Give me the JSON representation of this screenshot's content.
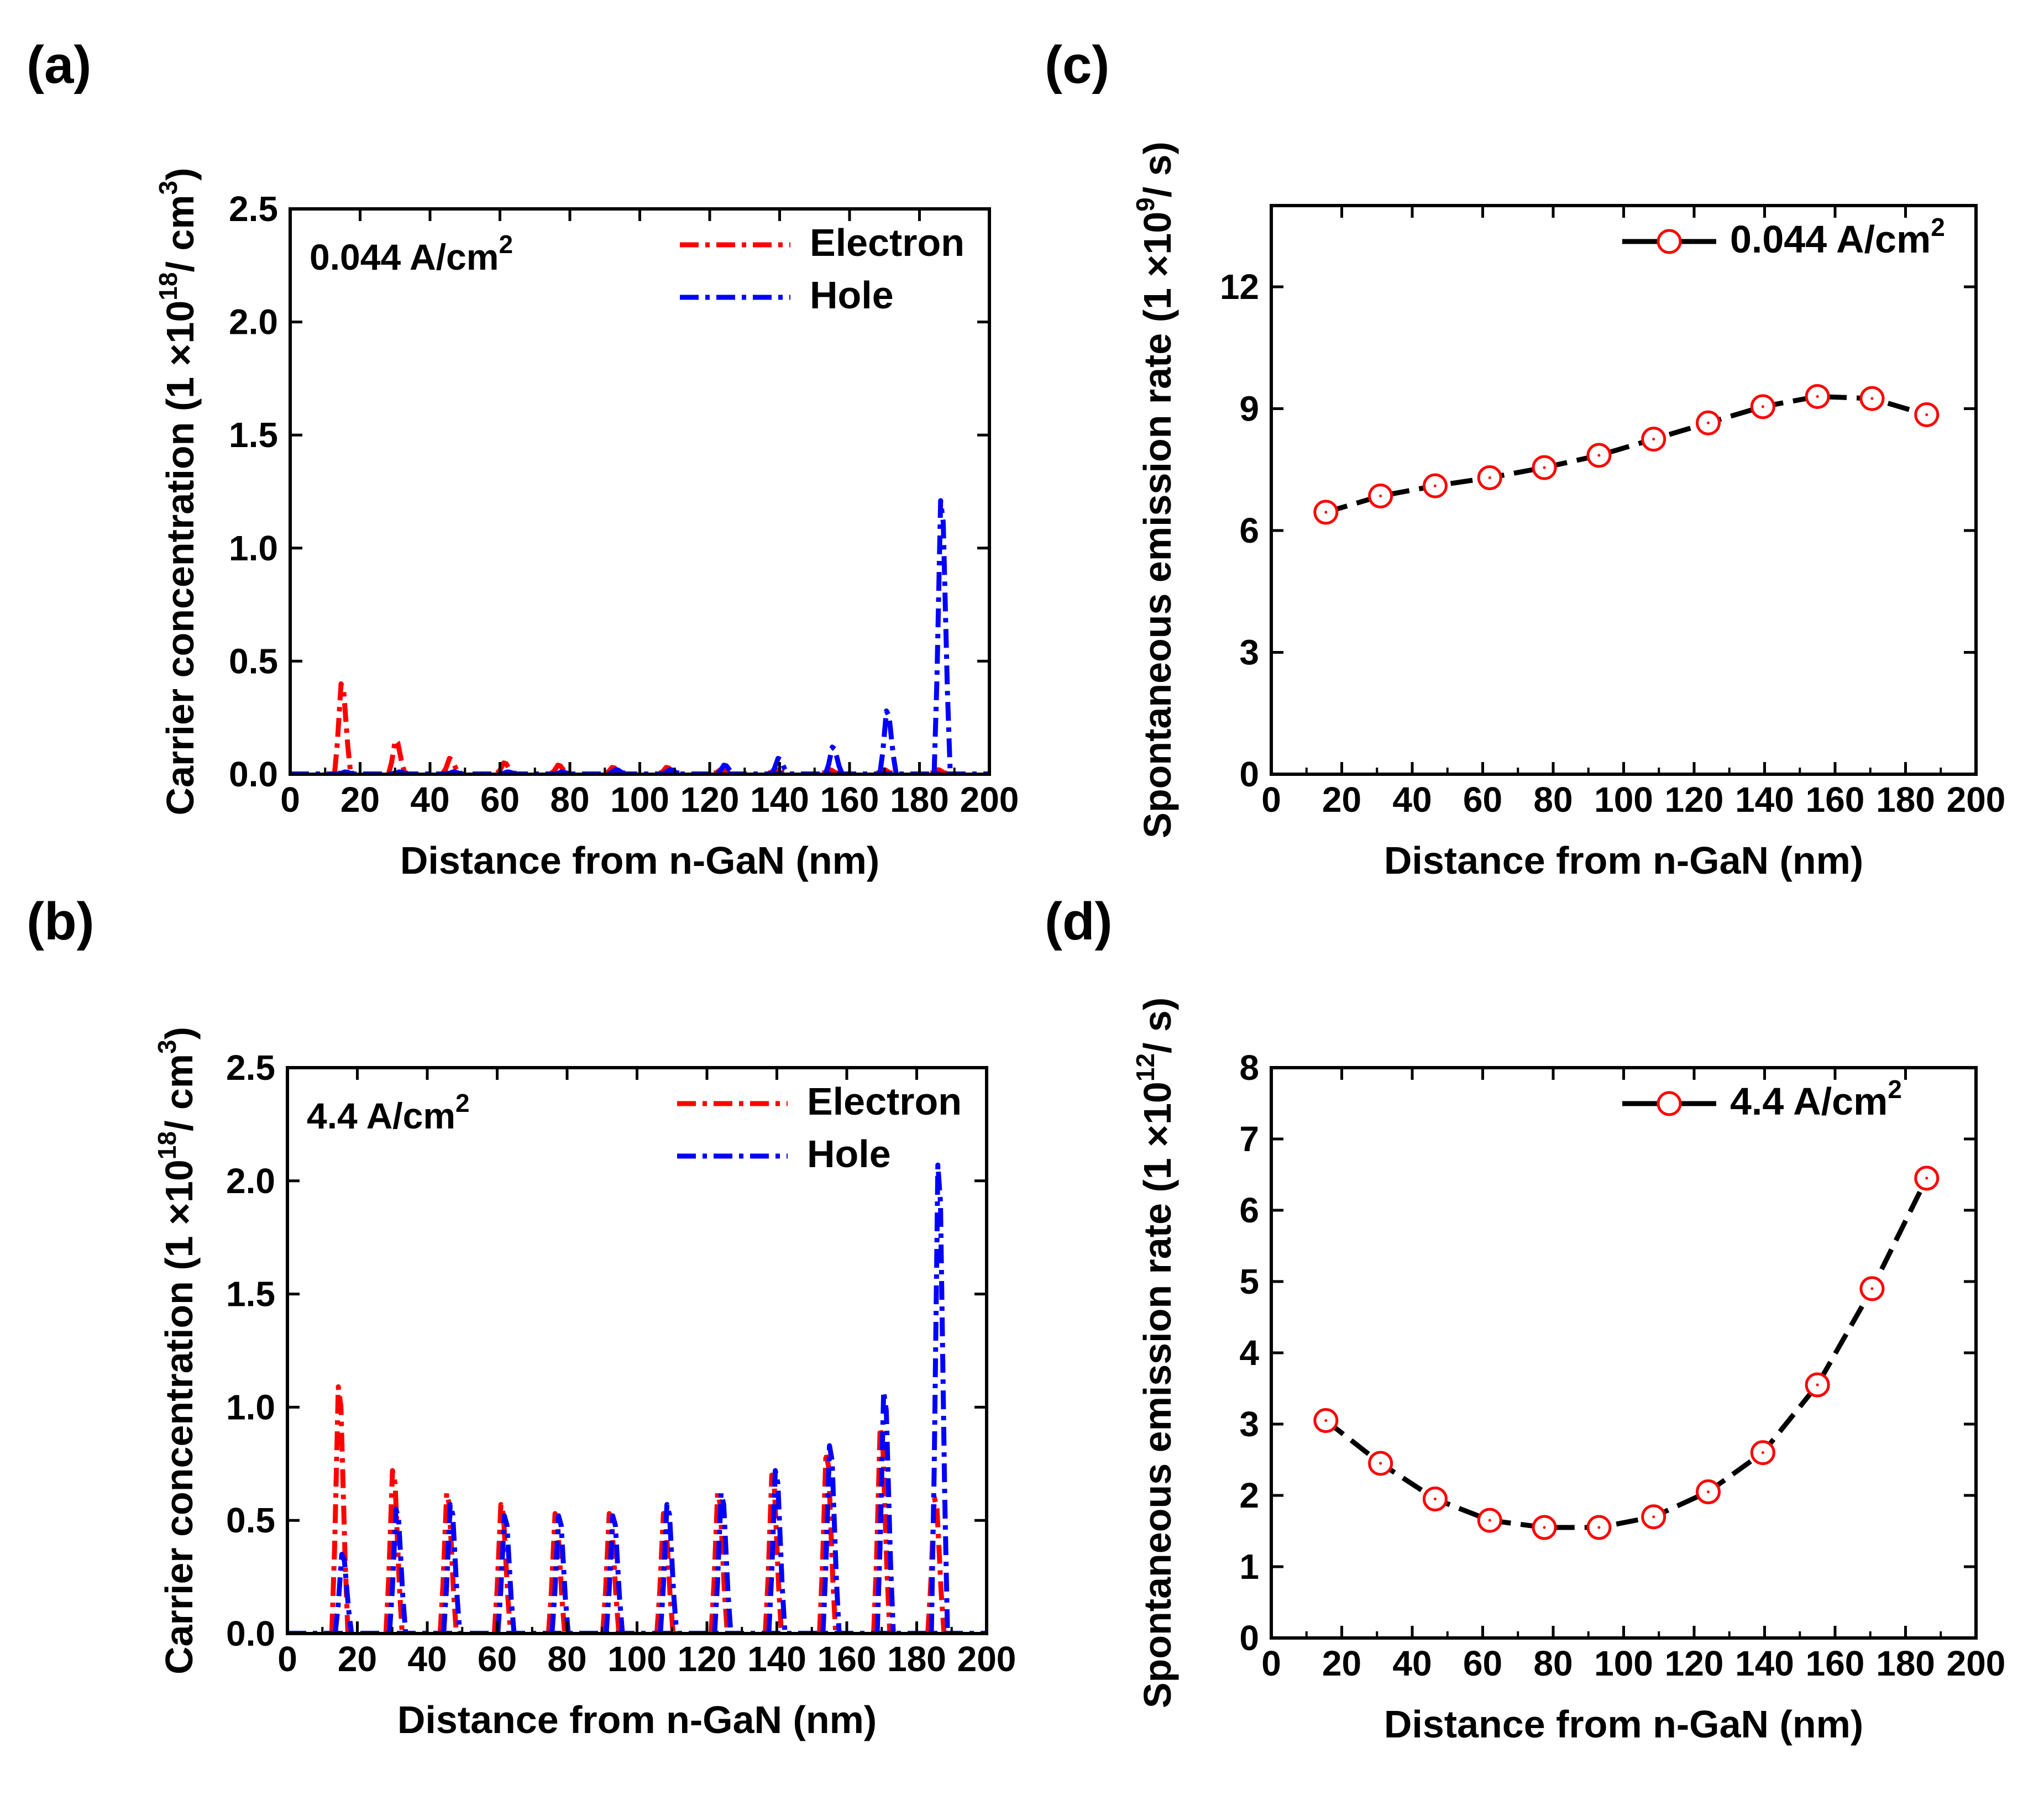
{
  "figure_description": "Four-panel simulation results of multiple quantum well LED",
  "chart_data": [
    {
      "id": "a",
      "panel_label": "(a)",
      "type": "line",
      "xlabel": "Distance from n-GaN (nm)",
      "ylabel_main": "Carrier concentration (1 ×10",
      "ylabel_sup1": "18",
      "ylabel_mid": "/ cm",
      "ylabel_sup2": "3",
      "ylabel_end": ")",
      "xlim": [
        0,
        200
      ],
      "ylim": [
        0,
        2.5
      ],
      "xticks": [
        0,
        20,
        40,
        60,
        80,
        100,
        120,
        140,
        160,
        180,
        200
      ],
      "yticks": [
        0.0,
        0.5,
        1.0,
        1.5,
        2.0,
        2.5
      ],
      "ytick_labels": [
        "0.0",
        "0.5",
        "1.0",
        "1.5",
        "2.0",
        "2.5"
      ],
      "annotation": {
        "text": "0.044 A/cm",
        "sup": "2"
      },
      "well_centers": [
        15.5,
        31,
        46.5,
        62,
        77.5,
        93,
        108.5,
        124,
        139.5,
        155,
        170.5,
        186
      ],
      "well_width": 3,
      "series": [
        {
          "name": "Electron",
          "color": "#ff0000",
          "peaks": [
            0.4,
            0.15,
            0.07,
            0.05,
            0.04,
            0.03,
            0.03,
            0.02,
            0.02,
            0.02,
            0.02,
            0.02
          ]
        },
        {
          "name": "Hole",
          "color": "#0000ff",
          "peaks": [
            0.01,
            0.01,
            0.01,
            0.01,
            0.01,
            0.02,
            0.02,
            0.04,
            0.07,
            0.12,
            0.28,
            1.21
          ]
        }
      ]
    },
    {
      "id": "b",
      "panel_label": "(b)",
      "type": "line",
      "xlabel": "Distance from n-GaN (nm)",
      "ylabel_main": "Carrier concentration (1 ×10",
      "ylabel_sup1": "18",
      "ylabel_mid": "/ cm",
      "ylabel_sup2": "3",
      "ylabel_end": ")",
      "xlim": [
        0,
        200
      ],
      "ylim": [
        0,
        2.5
      ],
      "xticks": [
        0,
        20,
        40,
        60,
        80,
        100,
        120,
        140,
        160,
        180,
        200
      ],
      "yticks": [
        0.0,
        0.5,
        1.0,
        1.5,
        2.0,
        2.5
      ],
      "ytick_labels": [
        "0.0",
        "0.5",
        "1.0",
        "1.5",
        "2.0",
        "2.5"
      ],
      "annotation": {
        "text": "4.4 A/cm",
        "sup": "2"
      },
      "well_centers": [
        15.5,
        31,
        46.5,
        62,
        77.5,
        93,
        108.5,
        124,
        139.5,
        155,
        170.5,
        186
      ],
      "well_width": 3,
      "series": [
        {
          "name": "Electron",
          "color": "#ff0000",
          "peaks": [
            1.09,
            0.72,
            0.62,
            0.57,
            0.53,
            0.53,
            0.53,
            0.62,
            0.7,
            0.8,
            0.91,
            0.6
          ]
        },
        {
          "name": "Hole",
          "color": "#0000ff",
          "peaks": [
            0.35,
            0.55,
            0.57,
            0.52,
            0.52,
            0.52,
            0.57,
            0.62,
            0.72,
            0.83,
            1.07,
            2.07
          ]
        }
      ]
    },
    {
      "id": "c",
      "panel_label": "(c)",
      "type": "line",
      "xlabel": "Distance from n-GaN (nm)",
      "ylabel_main": "Spontaneous emission rate (1 ×10",
      "ylabel_sup1": "9",
      "ylabel_mid": "/ s)",
      "xlim": [
        0,
        200
      ],
      "ylim": [
        0,
        14
      ],
      "xticks": [
        0,
        20,
        40,
        60,
        80,
        100,
        120,
        140,
        160,
        180,
        200
      ],
      "yticks": [
        0,
        3,
        6,
        9,
        12
      ],
      "ytick_labels": [
        "0",
        "3",
        "6",
        "9",
        "12"
      ],
      "series": [
        {
          "name": "0.044 A/cm",
          "name_sup": "2",
          "color": "#000000",
          "marker_color": "#ff0000",
          "x": [
            15.5,
            31,
            46.5,
            62,
            77.5,
            93,
            108.5,
            124,
            139.5,
            155,
            170.5,
            186
          ],
          "y": [
            6.45,
            6.85,
            7.1,
            7.3,
            7.55,
            7.85,
            8.25,
            8.65,
            9.05,
            9.3,
            9.25,
            8.85
          ]
        }
      ]
    },
    {
      "id": "d",
      "panel_label": "(d)",
      "type": "line",
      "xlabel": "Distance from n-GaN (nm)",
      "ylabel_main": "Spontaneous emission rate (1 ×10",
      "ylabel_sup1": "12",
      "ylabel_mid": "/ s)",
      "xlim": [
        0,
        200
      ],
      "ylim": [
        0,
        8
      ],
      "xticks": [
        0,
        20,
        40,
        60,
        80,
        100,
        120,
        140,
        160,
        180,
        200
      ],
      "yticks": [
        0,
        1,
        2,
        3,
        4,
        5,
        6,
        7,
        8
      ],
      "ytick_labels": [
        "0",
        "1",
        "2",
        "3",
        "4",
        "5",
        "6",
        "7",
        "8"
      ],
      "series": [
        {
          "name": "4.4 A/cm",
          "name_sup": "2",
          "color": "#000000",
          "marker_color": "#ff0000",
          "x": [
            15.5,
            31,
            46.5,
            62,
            77.5,
            93,
            108.5,
            124,
            139.5,
            155,
            170.5,
            186
          ],
          "y": [
            3.05,
            2.45,
            1.95,
            1.65,
            1.55,
            1.55,
            1.7,
            2.05,
            2.6,
            3.55,
            4.9,
            6.45
          ]
        }
      ]
    }
  ]
}
